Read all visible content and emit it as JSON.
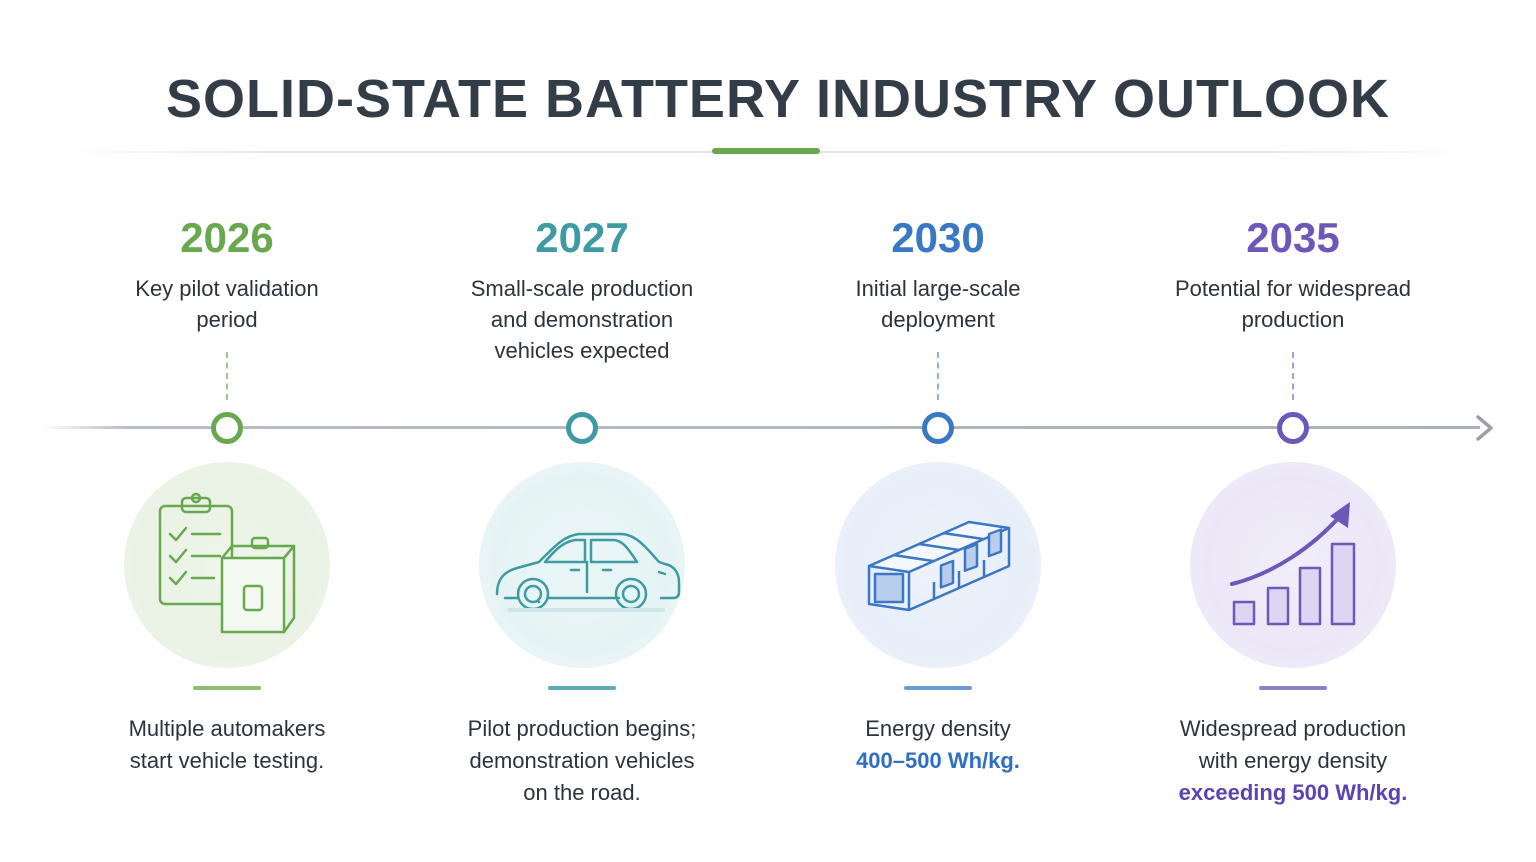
{
  "title": "SOLID-STATE BATTERY INDUSTRY OUTLOOK",
  "colors": {
    "title_accent": "#6aa84f",
    "axis": "#aab1b8",
    "milestone_2026": "#6aa84f",
    "milestone_2027": "#3e9aa3",
    "milestone_2030": "#3a78c4",
    "milestone_2035": "#6b58b8"
  },
  "milestones": [
    {
      "year": "2026",
      "description": "Key pilot validation period",
      "icon": "clipboard-checklist-battery-icon",
      "caption": "Multiple automakers start vehicle testing.",
      "highlight": ""
    },
    {
      "year": "2027",
      "description": "Small-scale production and demonstration vehicles expected",
      "icon": "car-icon",
      "caption": "Pilot production begins; demonstration vehicles on the road.",
      "highlight": ""
    },
    {
      "year": "2030",
      "description": "Initial large-scale deployment",
      "icon": "battery-pack-icon",
      "caption": "Energy density",
      "highlight": "400–500 Wh/kg."
    },
    {
      "year": "2035",
      "description": "Potential for widespread production",
      "icon": "growth-bar-chart-icon",
      "caption": "Widespread production with energy density",
      "highlight": "exceeding 500 Wh/kg."
    }
  ]
}
